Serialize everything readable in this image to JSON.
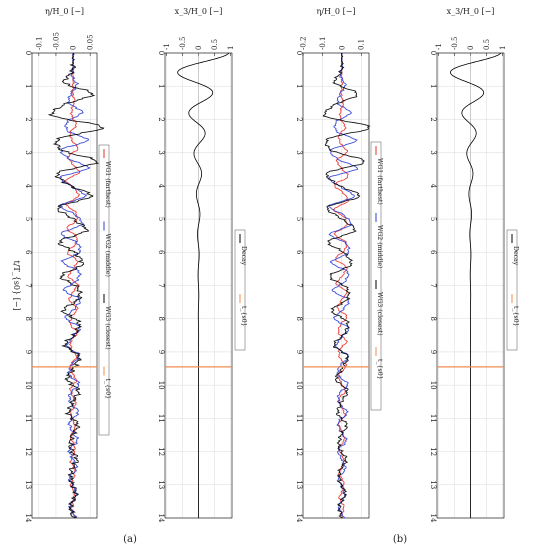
{
  "figure": {
    "caption_a": "(a)",
    "caption_b": "(b)",
    "t_axis_label": "t/T_{s0} [−]",
    "t_axis_ticks": [
      "0",
      "1",
      "2",
      "3",
      "4",
      "5",
      "6",
      "7",
      "8",
      "9",
      "10",
      "11",
      "12",
      "13",
      "14"
    ]
  },
  "colors": {
    "wg1": "#e8312a",
    "wg2": "#2b3cd6",
    "wg3": "#000000",
    "t0": "#f08b50",
    "decay": "#000000"
  },
  "chart_data": [
    {
      "panel": "a-left",
      "type": "line",
      "title": "η/H_0 [−]",
      "xlim": [
        -0.12,
        0.07
      ],
      "ylim": [
        0,
        14
      ],
      "x_ticks": [
        "-0.1",
        "-0.05",
        "0",
        "0.05"
      ],
      "x_tick_values": [
        -0.1,
        -0.05,
        0,
        0.05
      ],
      "t0": 9.45,
      "legend": [
        "WG1 (farthest)",
        "WG2 (middle)",
        "WG3 (closest)",
        "t_{s0}"
      ],
      "series": [
        {
          "name": "WG1 (farthest)",
          "color": "#e8312a",
          "amp": 0.018,
          "amp2": 0.004,
          "period": 0.7,
          "phase": 1.3,
          "start": 0.9,
          "peak": 3.8,
          "decay": 0.14
        },
        {
          "name": "WG2 (middle)",
          "color": "#2b3cd6",
          "amp": 0.04,
          "amp2": 0.006,
          "period": 0.82,
          "phase": 0.5,
          "start": 0.4,
          "peak": 3.0,
          "decay": 0.15
        },
        {
          "name": "WG3 (closest)",
          "color": "#000000",
          "amp": 0.075,
          "amp2": 0.01,
          "period": 1.0,
          "phase": 0.0,
          "start": 0.3,
          "peak": 1.8,
          "decay": 0.2
        }
      ]
    },
    {
      "panel": "a-right",
      "type": "line",
      "title": "x_3/H_0 [−]",
      "xlim": [
        -1.05,
        1.05
      ],
      "ylim": [
        0,
        14
      ],
      "x_ticks": [
        "-1",
        "-0.5",
        "0",
        "0.5",
        "1"
      ],
      "x_tick_values": [
        -1,
        -0.5,
        0,
        0.5,
        1
      ],
      "t0": 9.45,
      "legend": [
        "Decay",
        "t_{s0}"
      ],
      "decay": {
        "name": "Decay",
        "start_value": 0.95,
        "period": 1.22,
        "tau": 1.6
      }
    },
    {
      "panel": "b-left",
      "type": "line",
      "title": "η/H_0 [−]",
      "xlim": [
        -0.2,
        0.14
      ],
      "ylim": [
        0,
        14
      ],
      "x_ticks": [
        "-0.2",
        "-0.1",
        "0",
        "0.1"
      ],
      "x_tick_values": [
        -0.2,
        -0.1,
        0,
        0.1
      ],
      "t0": 9.45,
      "legend": [
        "WG1 (farthest)",
        "WG2 (middle)",
        "WG3 (closest)",
        "t_{s0}"
      ],
      "series": [
        {
          "name": "WG1 (farthest)",
          "color": "#e8312a",
          "amp": 0.035,
          "amp2": 0.006,
          "period": 0.72,
          "phase": 1.1,
          "start": 0.8,
          "peak": 4.2,
          "decay": 0.13
        },
        {
          "name": "WG2 (middle)",
          "color": "#2b3cd6",
          "amp": 0.07,
          "amp2": 0.008,
          "period": 0.82,
          "phase": 0.4,
          "start": 0.4,
          "peak": 3.1,
          "decay": 0.15
        },
        {
          "name": "WG3 (closest)",
          "color": "#000000",
          "amp": 0.12,
          "amp2": 0.012,
          "period": 1.0,
          "phase": 0.0,
          "start": 0.3,
          "peak": 2.0,
          "decay": 0.19
        }
      ]
    },
    {
      "panel": "b-right",
      "type": "line",
      "title": "x_3/H_0 [−]",
      "xlim": [
        -1.05,
        1.05
      ],
      "ylim": [
        0,
        14
      ],
      "x_ticks": [
        "-1",
        "-0.5",
        "0",
        "0.5",
        "1"
      ],
      "x_tick_values": [
        -1,
        -0.5,
        0,
        0.5,
        1
      ],
      "t0": 9.45,
      "legend": [
        "Decay",
        "t_{s0}"
      ],
      "decay": {
        "name": "Decay",
        "start_value": 0.95,
        "period": 1.22,
        "tau": 1.45
      }
    }
  ]
}
